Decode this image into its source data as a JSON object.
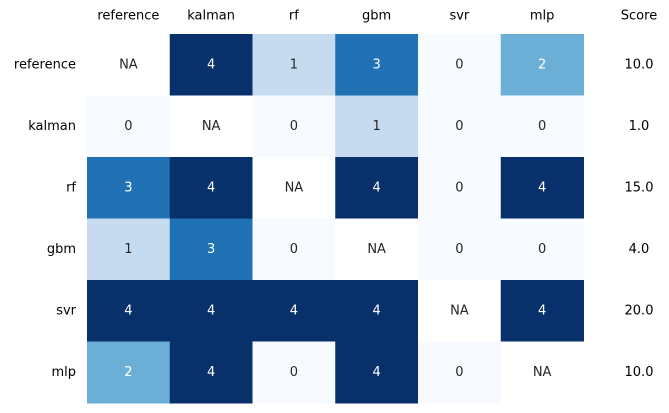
{
  "chart_data": {
    "type": "heatmap",
    "colormap": "Blues",
    "value_range": [
      0,
      4
    ],
    "rows": [
      "reference",
      "kalman",
      "rf",
      "gbm",
      "svr",
      "mlp"
    ],
    "columns": [
      "reference",
      "kalman",
      "rf",
      "gbm",
      "svr",
      "mlp"
    ],
    "cells": [
      [
        null,
        4,
        1,
        3,
        0,
        2
      ],
      [
        0,
        null,
        0,
        1,
        0,
        0
      ],
      [
        3,
        4,
        null,
        4,
        0,
        4
      ],
      [
        1,
        3,
        0,
        null,
        0,
        0
      ],
      [
        4,
        4,
        4,
        4,
        null,
        4
      ],
      [
        2,
        4,
        0,
        4,
        0,
        null
      ]
    ],
    "missing_label": "NA",
    "score_header": "Score",
    "scores": [
      "10.0",
      "1.0",
      "15.0",
      "4.0",
      "20.0",
      "10.0"
    ],
    "colors": {
      "na": "#ffffff",
      "0": "#f7fbff",
      "1": "#c6dbef",
      "2": "#6baed6",
      "3": "#2171b5",
      "4": "#08306b"
    }
  }
}
